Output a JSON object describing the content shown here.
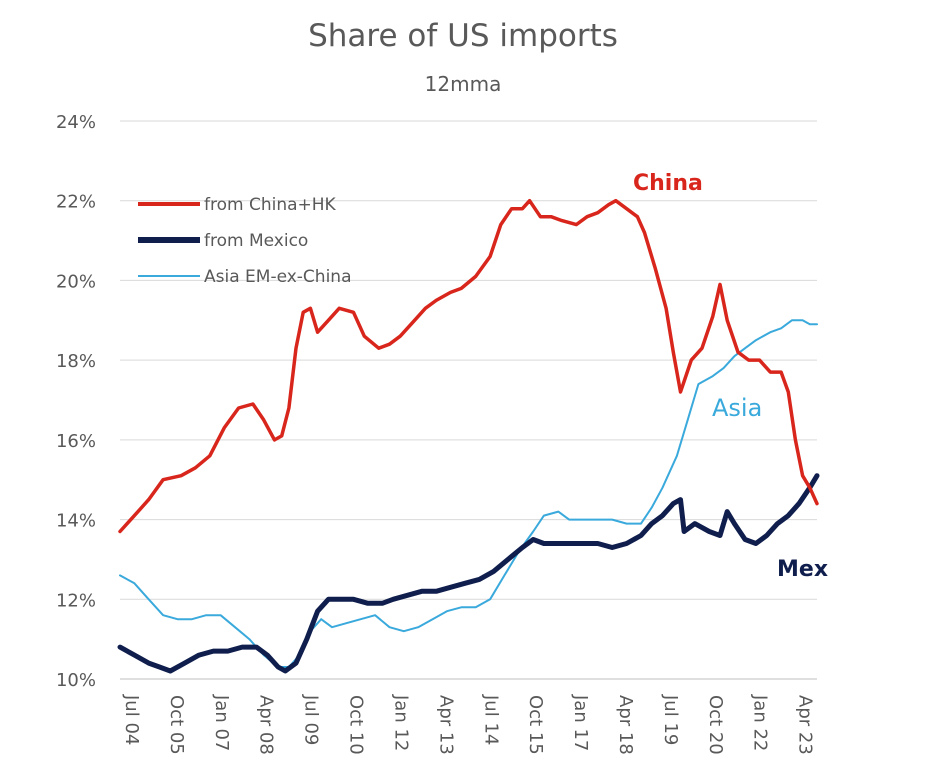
{
  "chart_data": {
    "type": "line",
    "title": "Share of US imports",
    "subtitle": "12mma",
    "xlabel": "",
    "ylabel": "",
    "ylim": [
      10,
      24
    ],
    "yticks": [
      "10%",
      "12%",
      "14%",
      "16%",
      "18%",
      "20%",
      "22%",
      "24%"
    ],
    "ytick_values": [
      10,
      12,
      14,
      16,
      18,
      20,
      22,
      24
    ],
    "xticks": [
      "Jul 04",
      "Oct 05",
      "Jan 07",
      "Apr 08",
      "Jul 09",
      "Oct 10",
      "Jan 12",
      "Apr 13",
      "Jul 14",
      "Oct 15",
      "Jan 17",
      "Apr 18",
      "Jul 19",
      "Oct 20",
      "Jan 22",
      "Apr 23"
    ],
    "xtick_values": [
      2004.5,
      2005.75,
      2007.0,
      2008.25,
      2009.5,
      2010.75,
      2012.0,
      2013.25,
      2014.5,
      2015.75,
      2017.0,
      2018.25,
      2019.5,
      2020.75,
      2022.0,
      2023.25
    ],
    "xlim": [
      2004.5,
      2023.9
    ],
    "grid": true,
    "legend_position": "top-left",
    "series": [
      {
        "name": "from China+HK",
        "color": "#d9261c",
        "x": [
          2004.5,
          2004.9,
          2005.3,
          2005.7,
          2006.2,
          2006.6,
          2007.0,
          2007.4,
          2007.8,
          2008.2,
          2008.5,
          2008.8,
          2009.0,
          2009.2,
          2009.4,
          2009.6,
          2009.8,
          2010.0,
          2010.3,
          2010.6,
          2011.0,
          2011.3,
          2011.7,
          2012.0,
          2012.3,
          2012.7,
          2013.0,
          2013.3,
          2013.7,
          2014.0,
          2014.4,
          2014.8,
          2015.1,
          2015.4,
          2015.7,
          2015.9,
          2016.2,
          2016.5,
          2016.8,
          2017.2,
          2017.5,
          2017.8,
          2018.1,
          2018.3,
          2018.6,
          2018.9,
          2019.1,
          2019.4,
          2019.7,
          2019.9,
          2020.1,
          2020.4,
          2020.7,
          2021.0,
          2021.2,
          2021.4,
          2021.7,
          2022.0,
          2022.3,
          2022.6,
          2022.9,
          2023.1,
          2023.3,
          2023.5,
          2023.7,
          2023.9
        ],
        "values": [
          13.7,
          14.1,
          14.5,
          15.0,
          15.1,
          15.3,
          15.6,
          16.3,
          16.8,
          16.9,
          16.5,
          16.0,
          16.1,
          16.8,
          18.3,
          19.2,
          19.3,
          18.7,
          19.0,
          19.3,
          19.2,
          18.6,
          18.3,
          18.4,
          18.6,
          19.0,
          19.3,
          19.5,
          19.7,
          19.8,
          20.1,
          20.6,
          21.4,
          21.8,
          21.8,
          22.0,
          21.6,
          21.6,
          21.5,
          21.4,
          21.6,
          21.7,
          21.9,
          22.0,
          21.8,
          21.6,
          21.2,
          20.3,
          19.3,
          18.2,
          17.2,
          18.0,
          18.3,
          19.1,
          19.9,
          19.0,
          18.2,
          18.0,
          18.0,
          17.7,
          17.7,
          17.2,
          16.0,
          15.1,
          14.8,
          14.4
        ]
      },
      {
        "name": "from Mexico",
        "color": "#0f1e4d",
        "x": [
          2004.5,
          2004.9,
          2005.3,
          2005.6,
          2005.9,
          2006.3,
          2006.7,
          2007.1,
          2007.5,
          2007.9,
          2008.3,
          2008.6,
          2008.9,
          2009.1,
          2009.4,
          2009.7,
          2010.0,
          2010.3,
          2010.6,
          2011.0,
          2011.4,
          2011.8,
          2012.1,
          2012.5,
          2012.9,
          2013.3,
          2013.7,
          2014.1,
          2014.5,
          2014.9,
          2015.3,
          2015.7,
          2016.0,
          2016.3,
          2016.7,
          2017.0,
          2017.4,
          2017.8,
          2018.2,
          2018.6,
          2019.0,
          2019.3,
          2019.6,
          2019.9,
          2020.1,
          2020.2,
          2020.5,
          2020.9,
          2021.2,
          2021.4,
          2021.6,
          2021.9,
          2022.2,
          2022.5,
          2022.8,
          2023.1,
          2023.4,
          2023.7,
          2023.9
        ],
        "values": [
          10.8,
          10.6,
          10.4,
          10.3,
          10.2,
          10.4,
          10.6,
          10.7,
          10.7,
          10.8,
          10.8,
          10.6,
          10.3,
          10.2,
          10.4,
          11.0,
          11.7,
          12.0,
          12.0,
          12.0,
          11.9,
          11.9,
          12.0,
          12.1,
          12.2,
          12.2,
          12.3,
          12.4,
          12.5,
          12.7,
          13.0,
          13.3,
          13.5,
          13.4,
          13.4,
          13.4,
          13.4,
          13.4,
          13.3,
          13.4,
          13.6,
          13.9,
          14.1,
          14.4,
          14.5,
          13.7,
          13.9,
          13.7,
          13.6,
          14.2,
          13.9,
          13.5,
          13.4,
          13.6,
          13.9,
          14.1,
          14.4,
          14.8,
          15.1
        ]
      },
      {
        "name": "Asia EM-ex-China",
        "color": "#3aa9dc",
        "x": [
          2004.5,
          2004.9,
          2005.3,
          2005.7,
          2006.1,
          2006.5,
          2006.9,
          2007.3,
          2007.7,
          2008.1,
          2008.5,
          2008.9,
          2009.2,
          2009.5,
          2009.8,
          2010.1,
          2010.4,
          2010.8,
          2011.2,
          2011.6,
          2012.0,
          2012.4,
          2012.8,
          2013.2,
          2013.6,
          2014.0,
          2014.4,
          2014.8,
          2015.2,
          2015.6,
          2016.0,
          2016.3,
          2016.7,
          2017.0,
          2017.4,
          2017.8,
          2018.2,
          2018.6,
          2019.0,
          2019.3,
          2019.6,
          2020.0,
          2020.3,
          2020.6,
          2021.0,
          2021.3,
          2021.6,
          2021.9,
          2022.2,
          2022.6,
          2022.9,
          2023.2,
          2023.5,
          2023.7,
          2023.9
        ],
        "values": [
          12.6,
          12.4,
          12.0,
          11.6,
          11.5,
          11.5,
          11.6,
          11.6,
          11.3,
          11.0,
          10.6,
          10.3,
          10.3,
          10.6,
          11.2,
          11.5,
          11.3,
          11.4,
          11.5,
          11.6,
          11.3,
          11.2,
          11.3,
          11.5,
          11.7,
          11.8,
          11.8,
          12.0,
          12.6,
          13.2,
          13.7,
          14.1,
          14.2,
          14.0,
          14.0,
          14.0,
          14.0,
          13.9,
          13.9,
          14.3,
          14.8,
          15.6,
          16.5,
          17.4,
          17.6,
          17.8,
          18.1,
          18.3,
          18.5,
          18.7,
          18.8,
          19.0,
          19.0,
          18.9,
          18.9
        ]
      }
    ],
    "annotations": [
      {
        "text": "China",
        "color": "#d9261c"
      },
      {
        "text": "Asia",
        "color": "#3aa9dc"
      },
      {
        "text": "Mex",
        "color": "#0f1e4d"
      }
    ]
  }
}
